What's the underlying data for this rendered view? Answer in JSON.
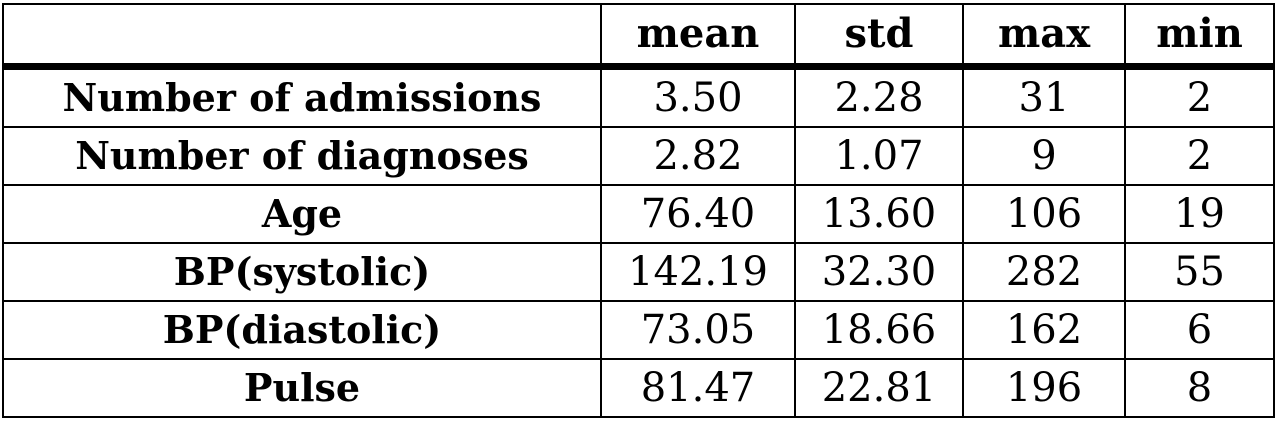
{
  "table": {
    "columns": [
      "",
      "mean",
      "std",
      "max",
      "min"
    ],
    "rows": [
      {
        "label": "Number of admissions",
        "values": [
          "3.50",
          "2.28",
          "31",
          "2"
        ]
      },
      {
        "label": "Number of diagnoses",
        "values": [
          "2.82",
          "1.07",
          "9",
          "2"
        ]
      },
      {
        "label": "Age",
        "values": [
          "76.40",
          "13.60",
          "106",
          "19"
        ]
      },
      {
        "label": "BP(systolic)",
        "values": [
          "142.19",
          "32.30",
          "282",
          "55"
        ]
      },
      {
        "label": "BP(diastolic)",
        "values": [
          "73.05",
          "18.66",
          "162",
          "6"
        ]
      },
      {
        "label": "Pulse",
        "values": [
          "81.47",
          "22.81",
          "196",
          "8"
        ]
      }
    ]
  }
}
